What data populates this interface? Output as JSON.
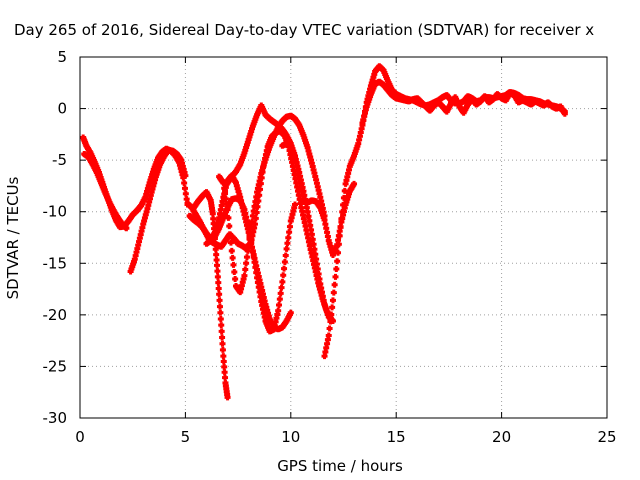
{
  "chart_data": {
    "type": "scatter",
    "title": "Day 265 of 2016, Sidereal Day-to-day VTEC variation (SDTVAR) for receiver x",
    "xlabel": "GPS time / hours",
    "ylabel": "SDTVAR / TECUs",
    "xlim": [
      0,
      25
    ],
    "ylim": [
      -30,
      5
    ],
    "xticks": [
      0,
      5,
      10,
      15,
      20,
      25
    ],
    "yticks": [
      -30,
      -25,
      -20,
      -15,
      -10,
      -5,
      0,
      5
    ],
    "grid": true,
    "marker": "plus",
    "color": "#ff0000",
    "series": [
      {
        "x": [
          0.15,
          0.3,
          0.5,
          0.7,
          0.9,
          1.1,
          1.3,
          1.5,
          1.7,
          1.9,
          2.1,
          2.3,
          2.5,
          2.7,
          2.9,
          3.1,
          3.3,
          3.5,
          3.7,
          3.9,
          4.1,
          4.3,
          4.5,
          4.7,
          4.9,
          5.1
        ],
        "y": [
          -2.8,
          -3.6,
          -4.3,
          -5.2,
          -6.2,
          -7.4,
          -8.6,
          -9.8,
          -10.8,
          -11.5,
          -11.4,
          -10.9,
          -10.3,
          -9.9,
          -9.4,
          -8.6,
          -7.2,
          -5.9,
          -4.8,
          -4.2,
          -3.9,
          -4.1,
          -4.5,
          -5.2,
          -6.7,
          -9.3
        ]
      },
      {
        "x": [
          0.2,
          0.4,
          0.6,
          0.8,
          1.0,
          1.2,
          1.4,
          1.6,
          1.8,
          2.0,
          2.2
        ],
        "y": [
          -4.4,
          -4.7,
          -5.4,
          -6.2,
          -7.2,
          -8.2,
          -9.1,
          -9.9,
          -10.6,
          -11.2,
          -11.6
        ]
      },
      {
        "x": [
          2.4,
          2.6,
          2.8,
          3.0,
          3.2,
          3.4,
          3.6,
          3.8,
          4.0,
          4.2,
          4.4,
          4.6,
          4.8,
          5.0
        ],
        "y": [
          -15.8,
          -14.6,
          -12.9,
          -11.2,
          -9.7,
          -8.1,
          -6.6,
          -5.4,
          -4.6,
          -4.0,
          -4.1,
          -4.4,
          -5.0,
          -6.5
        ]
      },
      {
        "x": [
          5.1,
          5.3,
          5.5,
          5.7,
          5.9,
          6.1,
          6.3,
          6.5,
          6.7,
          6.9,
          7.1,
          7.3,
          7.5,
          7.7,
          7.9,
          8.1,
          8.3,
          8.5,
          8.7,
          8.9,
          9.1,
          9.3,
          9.5,
          9.7,
          9.9,
          10.1,
          10.3,
          10.5,
          10.7,
          10.9,
          11.1,
          11.3,
          11.5,
          11.7,
          11.9
        ],
        "y": [
          -9.2,
          -9.6,
          -10.3,
          -11.0,
          -11.8,
          -12.6,
          -13.0,
          -13.2,
          -13.4,
          -12.8,
          -12.2,
          -12.6,
          -13.1,
          -13.3,
          -13.6,
          -13.1,
          -11.2,
          -8.4,
          -5.6,
          -3.7,
          -2.7,
          -2.3,
          -2.2,
          -2.6,
          -3.7,
          -5.6,
          -7.6,
          -9.6,
          -11.4,
          -13.3,
          -15.1,
          -16.9,
          -18.4,
          -19.6,
          -20.3
        ]
      },
      {
        "x": [
          5.2,
          5.4,
          5.6,
          5.8,
          6.0,
          6.2,
          6.4,
          6.6,
          6.8,
          7.0,
          7.2,
          7.4,
          7.6,
          7.8,
          8.0,
          8.2,
          8.4,
          8.6,
          8.8,
          9.0,
          9.2,
          9.4,
          9.6,
          9.8,
          10.0,
          10.2
        ],
        "y": [
          -10.4,
          -10.8,
          -11.1,
          -11.5,
          -12.1,
          -12.6,
          -12.4,
          -11.6,
          -10.6,
          -9.6,
          -8.8,
          -8.7,
          -8.9,
          -9.8,
          -11.6,
          -13.9,
          -16.4,
          -18.7,
          -20.6,
          -21.6,
          -21.4,
          -19.6,
          -16.8,
          -13.6,
          -10.9,
          -9.3
        ]
      },
      {
        "x": [
          5.4,
          5.6,
          5.8,
          6.0,
          6.2,
          6.3,
          6.4,
          6.5,
          6.6,
          6.7,
          6.8,
          6.9,
          7.0
        ],
        "y": [
          -9.6,
          -9.0,
          -8.5,
          -8.1,
          -8.9,
          -10.2,
          -12.6,
          -15.2,
          -18.0,
          -21.0,
          -24.0,
          -26.6,
          -28.0
        ]
      },
      {
        "x": [
          6.0,
          6.2,
          6.4,
          6.6,
          6.8,
          7.0,
          7.2,
          7.4,
          7.6,
          7.8,
          8.0,
          8.2,
          8.4,
          8.6,
          8.8,
          9.0,
          9.2,
          9.4,
          9.6,
          9.8,
          10.0
        ],
        "y": [
          -13.1,
          -12.8,
          -12.0,
          -10.6,
          -8.6,
          -7.0,
          -6.5,
          -7.2,
          -8.6,
          -10.3,
          -12.0,
          -13.8,
          -15.6,
          -17.3,
          -19.0,
          -20.4,
          -21.2,
          -21.4,
          -21.2,
          -20.6,
          -19.8
        ]
      },
      {
        "x": [
          6.6,
          6.8,
          7.0,
          7.2,
          7.4,
          7.6,
          7.8,
          8.0,
          8.2,
          8.4,
          8.6,
          8.8,
          9.0,
          9.2,
          9.4,
          9.6,
          9.8,
          10.0,
          10.2,
          10.4,
          10.6,
          10.8,
          11.0,
          11.2,
          11.4,
          11.6
        ],
        "y": [
          -6.6,
          -7.2,
          -9.8,
          -13.8,
          -17.2,
          -17.8,
          -16.2,
          -13.2,
          -10.4,
          -8.1,
          -6.3,
          -4.9,
          -3.7,
          -2.7,
          -1.8,
          -1.2,
          -0.8,
          -0.7,
          -1.0,
          -1.6,
          -2.6,
          -3.8,
          -5.3,
          -6.9,
          -8.6,
          -10.4
        ]
      },
      {
        "x": [
          7.0,
          7.2,
          7.4,
          7.6,
          7.8,
          8.0,
          8.2,
          8.4,
          8.6,
          8.8,
          9.0,
          9.2,
          9.4,
          9.6,
          9.8,
          10.0,
          10.2,
          10.4,
          10.6,
          10.8,
          11.0,
          11.2,
          11.4,
          11.6,
          11.8,
          12.0
        ],
        "y": [
          -7.2,
          -6.6,
          -6.1,
          -5.4,
          -4.3,
          -3.0,
          -1.7,
          -0.6,
          0.3,
          -0.6,
          -1.0,
          -1.3,
          -1.6,
          -2.0,
          -2.6,
          -3.4,
          -4.6,
          -6.2,
          -8.0,
          -10.0,
          -12.2,
          -14.6,
          -17.0,
          -19.0,
          -20.2,
          -20.6
        ]
      },
      {
        "x": [
          9.6,
          9.8,
          10.0,
          10.2,
          10.4,
          10.6,
          10.8,
          11.0,
          11.2,
          11.4,
          11.6,
          11.8,
          12.0,
          12.2,
          12.4,
          12.6,
          12.8,
          13.0
        ],
        "y": [
          -3.6,
          -3.4,
          -3.6,
          -4.8,
          -6.8,
          -8.8,
          -9.1,
          -8.9,
          -9.0,
          -9.6,
          -10.8,
          -12.8,
          -14.2,
          -13.2,
          -11.0,
          -9.3,
          -8.0,
          -7.3
        ]
      },
      {
        "x": [
          11.6,
          11.8,
          12.0,
          12.2,
          12.4,
          12.6,
          12.8,
          13.0,
          13.2,
          13.4,
          13.6,
          13.8,
          14.0,
          14.2,
          14.4,
          14.6,
          14.8,
          15.0,
          15.2,
          15.4,
          15.6,
          15.8,
          16.0,
          16.2,
          16.4,
          16.6,
          16.8,
          17.0,
          17.2,
          17.4,
          17.6,
          17.8,
          18.0,
          18.2,
          18.4,
          18.6,
          18.8,
          19.0,
          19.2,
          19.4,
          19.6,
          19.8,
          20.0,
          20.2,
          20.4,
          20.6,
          20.8,
          21.0,
          21.2,
          21.4,
          21.6,
          21.8,
          22.0,
          22.2,
          22.4,
          22.6,
          22.8,
          23.0
        ],
        "y": [
          -24.0,
          -22.0,
          -18.6,
          -14.8,
          -10.7,
          -7.3,
          -5.6,
          -4.6,
          -3.4,
          -1.6,
          0.6,
          2.2,
          3.6,
          4.1,
          3.7,
          2.7,
          1.8,
          1.4,
          1.2,
          1.0,
          0.9,
          0.8,
          0.6,
          0.4,
          0.3,
          0.4,
          0.6,
          0.8,
          1.1,
          1.3,
          0.8,
          0.5,
          0.5,
          0.7,
          1.2,
          1.0,
          0.7,
          0.8,
          1.1,
          1.1,
          1.0,
          1.1,
          1.2,
          1.3,
          1.6,
          1.5,
          1.3,
          1.0,
          0.9,
          0.9,
          0.8,
          0.7,
          0.5,
          0.4,
          0.3,
          0.2,
          0.0,
          -0.3
        ]
      },
      {
        "x": [
          13.4,
          13.6,
          13.8,
          14.0,
          14.2,
          14.4,
          14.6,
          14.8,
          15.0,
          15.2,
          15.4,
          15.6,
          15.8,
          16.0,
          16.2,
          16.4,
          16.6,
          16.8,
          17.0,
          17.2,
          17.4,
          17.6,
          17.8,
          18.0,
          18.2,
          18.4,
          18.6,
          18.8,
          19.0,
          19.2,
          19.4,
          19.6,
          19.8,
          20.0,
          20.2,
          20.4,
          20.6,
          20.8,
          21.0,
          21.2,
          21.4,
          21.6,
          21.8,
          22.0,
          22.2,
          22.4,
          22.6,
          22.8,
          23.0
        ],
        "y": [
          -1.4,
          0.2,
          1.4,
          2.4,
          2.6,
          2.3,
          1.8,
          1.3,
          1.0,
          0.9,
          0.8,
          0.7,
          0.9,
          1.0,
          0.6,
          0.2,
          -0.2,
          0.3,
          0.6,
          0.2,
          -0.3,
          0.5,
          1.1,
          0.2,
          -0.4,
          0.4,
          0.9,
          0.4,
          0.7,
          1.2,
          0.6,
          0.9,
          1.4,
          1.0,
          0.8,
          1.5,
          1.3,
          0.6,
          0.8,
          0.6,
          0.4,
          0.7,
          0.5,
          0.3,
          0.6,
          0.2,
          0.0,
          0.2,
          -0.5
        ]
      }
    ]
  }
}
